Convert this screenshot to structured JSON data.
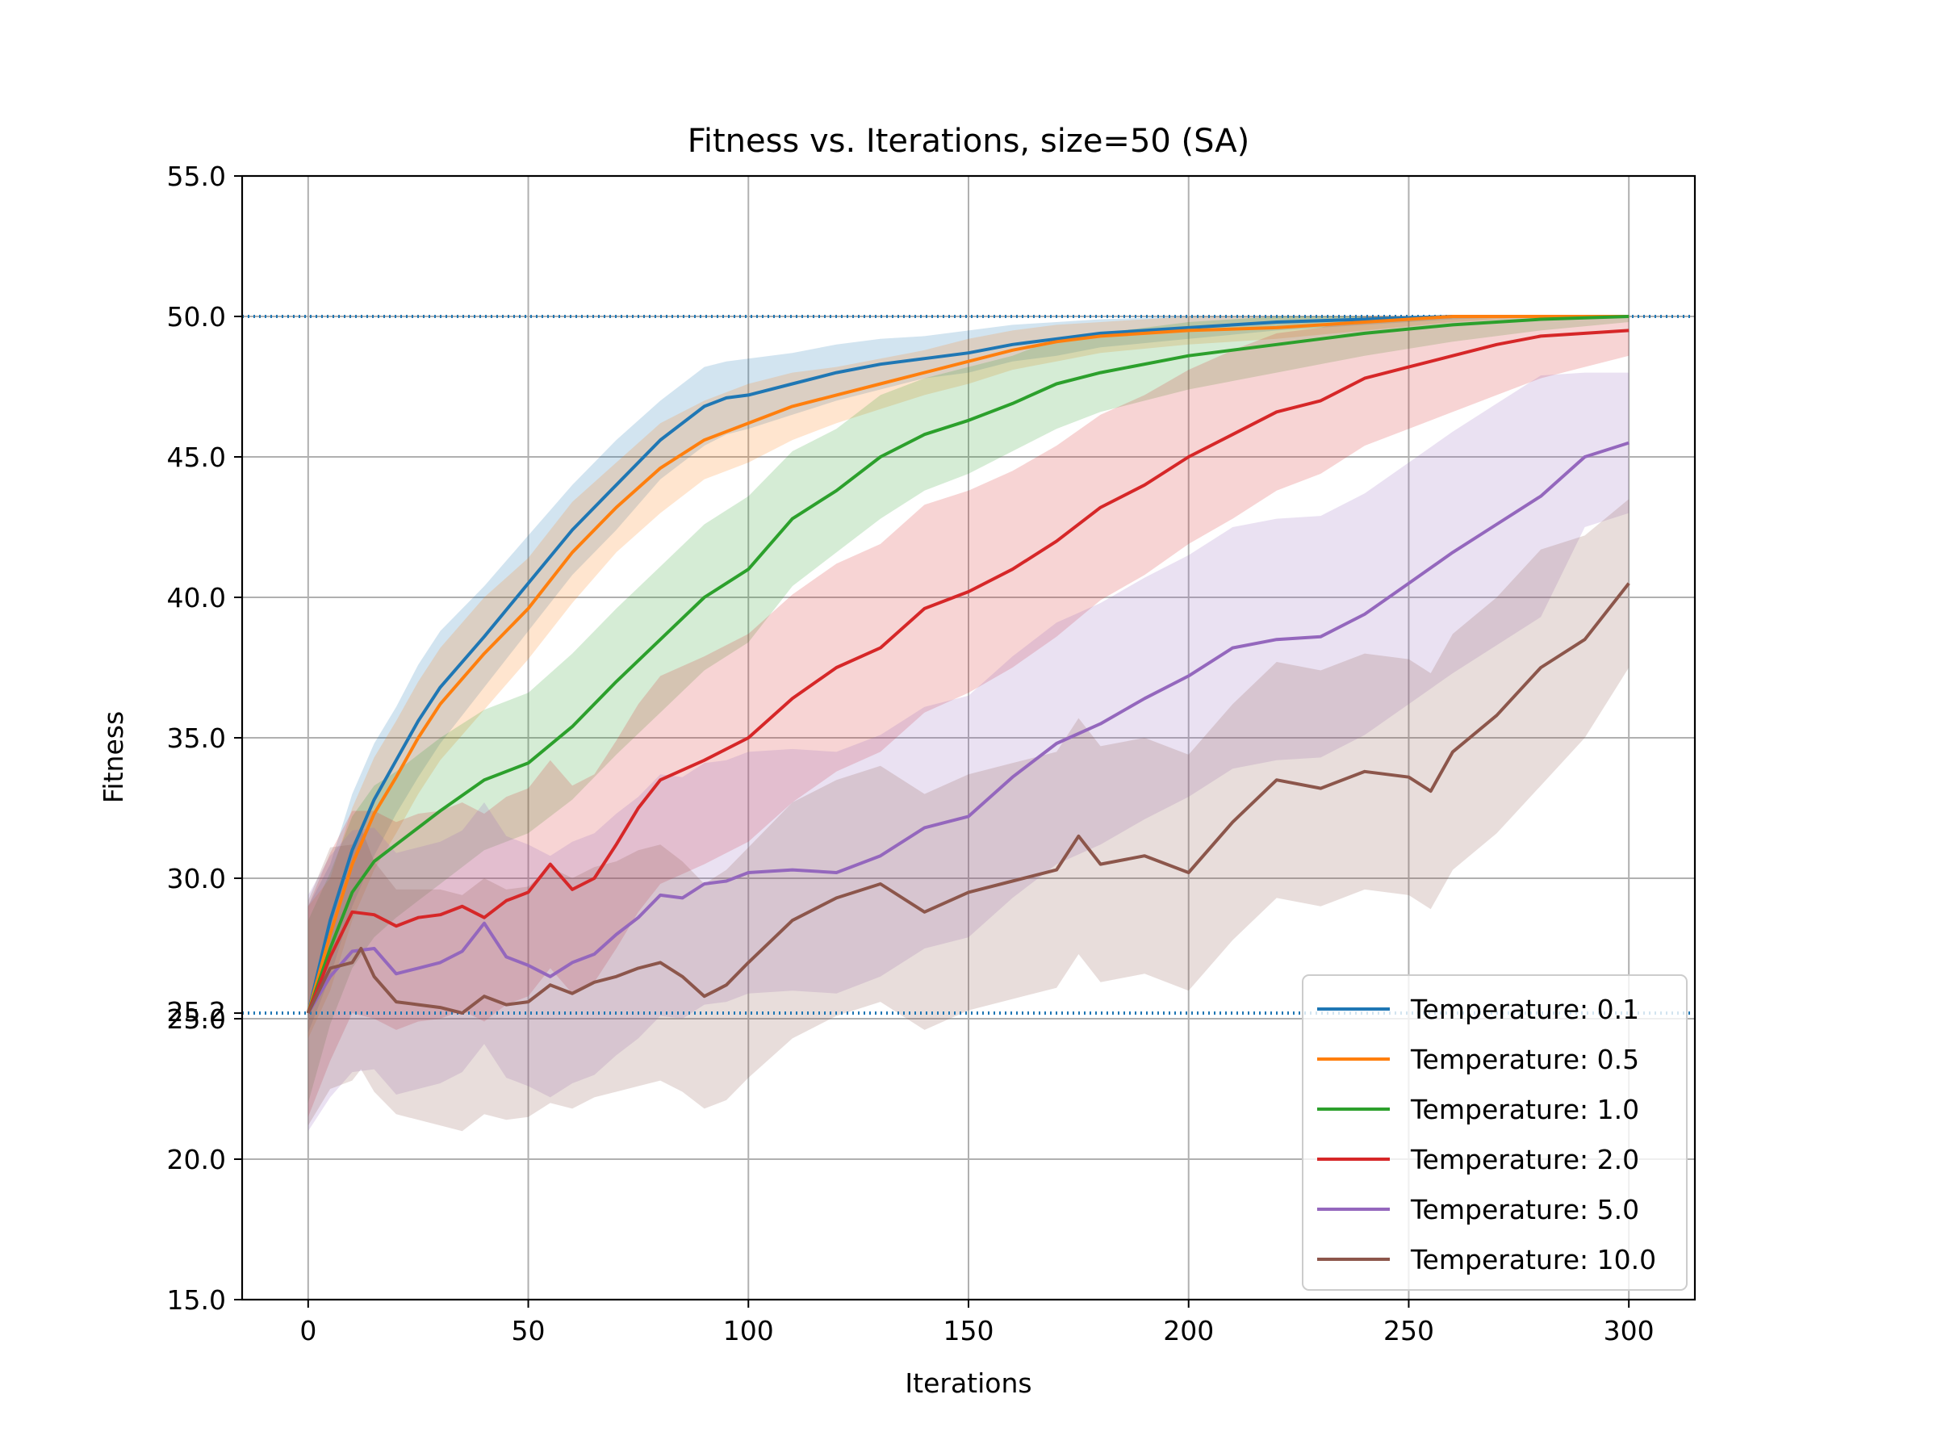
{
  "chart_data": {
    "type": "line",
    "title": "Fitness vs. Iterations, size=50 (SA)",
    "xlabel": "Iterations",
    "ylabel": "Fitness",
    "xlim": [
      -15,
      315
    ],
    "ylim": [
      15,
      55
    ],
    "x_ticks": [
      0,
      50,
      100,
      150,
      200,
      250,
      300
    ],
    "y_ticks": [
      "15.0",
      "20.0",
      "25.0",
      "30.0",
      "35.0",
      "40.0",
      "45.0",
      "50.0",
      "55.0"
    ],
    "extra_y_tick": "25.2",
    "reference_lines": [
      {
        "y": 50.0,
        "style": "dotted",
        "color": "#1f77b4"
      },
      {
        "y": 25.2,
        "style": "dotted",
        "color": "#1f77b4"
      }
    ],
    "grid": true,
    "legend_position": "lower-right",
    "band_opacity": 0.2,
    "series": [
      {
        "name": "Temperature: 0.1",
        "color": "#1f77b4",
        "x": [
          0,
          5,
          10,
          15,
          20,
          25,
          30,
          40,
          50,
          60,
          70,
          80,
          90,
          95,
          100,
          110,
          120,
          130,
          140,
          150,
          160,
          170,
          180,
          200,
          220,
          240,
          260,
          280,
          300
        ],
        "mean": [
          25.2,
          28.5,
          31.0,
          32.8,
          34.2,
          35.6,
          36.8,
          38.6,
          40.5,
          42.4,
          44.0,
          45.6,
          46.8,
          47.1,
          47.2,
          47.6,
          48.0,
          48.3,
          48.5,
          48.7,
          49.0,
          49.2,
          49.4,
          49.6,
          49.8,
          49.9,
          50.0,
          50.0,
          50.0
        ],
        "lower": [
          24.5,
          26.5,
          29.0,
          30.8,
          32.3,
          33.6,
          34.8,
          36.8,
          38.8,
          40.8,
          42.4,
          44.2,
          45.4,
          45.8,
          46.0,
          46.5,
          47.0,
          47.4,
          47.8,
          48.0,
          48.4,
          48.6,
          48.9,
          49.2,
          49.5,
          49.7,
          49.9,
          50.0,
          50.0
        ],
        "upper": [
          29.0,
          30.5,
          33.0,
          34.8,
          36.1,
          37.6,
          38.8,
          40.4,
          42.2,
          44.0,
          45.6,
          47.0,
          48.2,
          48.4,
          48.5,
          48.7,
          49.0,
          49.2,
          49.3,
          49.5,
          49.7,
          49.8,
          49.9,
          50.0,
          50.0,
          50.0,
          50.0,
          50.0,
          50.0
        ]
      },
      {
        "name": "Temperature: 0.5",
        "color": "#ff7f0e",
        "x": [
          0,
          5,
          10,
          15,
          20,
          25,
          30,
          40,
          50,
          60,
          70,
          80,
          90,
          100,
          110,
          120,
          130,
          140,
          150,
          160,
          170,
          180,
          200,
          220,
          240,
          260,
          280,
          300
        ],
        "mean": [
          25.2,
          28.0,
          30.5,
          32.3,
          33.6,
          35.0,
          36.2,
          38.0,
          39.6,
          41.6,
          43.2,
          44.6,
          45.6,
          46.2,
          46.8,
          47.2,
          47.6,
          48.0,
          48.4,
          48.8,
          49.1,
          49.3,
          49.5,
          49.6,
          49.8,
          50.0,
          50.0,
          50.0
        ],
        "lower": [
          24.3,
          26.0,
          28.5,
          30.3,
          31.6,
          33.0,
          34.2,
          36.0,
          37.8,
          39.8,
          41.6,
          43.0,
          44.2,
          44.8,
          45.6,
          46.2,
          46.7,
          47.2,
          47.6,
          48.1,
          48.4,
          48.7,
          49.0,
          49.2,
          49.5,
          49.8,
          50.0,
          50.0
        ],
        "upper": [
          29.0,
          30.0,
          32.5,
          34.3,
          35.6,
          37.0,
          38.2,
          40.0,
          41.4,
          43.4,
          44.8,
          46.2,
          47.0,
          47.6,
          48.0,
          48.2,
          48.5,
          48.8,
          49.2,
          49.5,
          49.7,
          49.8,
          50.0,
          50.0,
          50.0,
          50.0,
          50.0,
          50.0
        ]
      },
      {
        "name": "Temperature: 1.0",
        "color": "#2ca02c",
        "x": [
          0,
          5,
          10,
          15,
          20,
          25,
          30,
          40,
          50,
          60,
          70,
          80,
          90,
          100,
          110,
          120,
          130,
          140,
          150,
          160,
          170,
          180,
          200,
          220,
          240,
          260,
          280,
          300
        ],
        "mean": [
          25.2,
          27.5,
          29.5,
          30.6,
          31.2,
          31.8,
          32.4,
          33.5,
          34.1,
          35.4,
          37.0,
          38.5,
          40.0,
          41.0,
          42.8,
          43.8,
          45.0,
          45.8,
          46.3,
          46.9,
          47.6,
          48.0,
          48.6,
          49.0,
          49.4,
          49.7,
          49.9,
          50.0
        ],
        "lower": [
          22.0,
          24.8,
          26.8,
          27.9,
          28.6,
          29.2,
          29.8,
          31.0,
          31.6,
          32.8,
          34.4,
          35.9,
          37.4,
          38.4,
          40.4,
          41.6,
          42.8,
          43.8,
          44.4,
          45.2,
          46.0,
          46.6,
          47.4,
          48.0,
          48.6,
          49.1,
          49.5,
          49.8
        ],
        "upper": [
          28.5,
          30.2,
          32.2,
          33.3,
          33.8,
          34.4,
          35.0,
          36.0,
          36.6,
          38.0,
          39.6,
          41.1,
          42.6,
          43.6,
          45.2,
          46.0,
          47.2,
          47.8,
          48.2,
          48.6,
          49.2,
          49.4,
          49.8,
          50.0,
          50.0,
          50.0,
          50.0,
          50.0
        ]
      },
      {
        "name": "Temperature: 2.0",
        "color": "#d62728",
        "x": [
          0,
          5,
          10,
          15,
          20,
          25,
          30,
          35,
          40,
          45,
          50,
          55,
          60,
          65,
          70,
          75,
          80,
          90,
          100,
          110,
          120,
          130,
          140,
          150,
          160,
          170,
          180,
          190,
          200,
          210,
          220,
          230,
          240,
          250,
          260,
          270,
          280,
          290,
          300
        ],
        "mean": [
          25.2,
          27.2,
          28.8,
          28.7,
          28.3,
          28.6,
          28.7,
          29.0,
          28.6,
          29.2,
          29.5,
          30.5,
          29.6,
          30.0,
          31.2,
          32.5,
          33.5,
          34.2,
          35.0,
          36.4,
          37.5,
          38.2,
          39.6,
          40.2,
          41.0,
          42.0,
          43.2,
          44.0,
          45.0,
          45.8,
          46.6,
          47.0,
          47.8,
          48.2,
          48.6,
          49.0,
          49.3,
          49.4,
          49.5
        ],
        "lower": [
          21.5,
          23.5,
          25.2,
          25.0,
          24.6,
          24.9,
          25.0,
          25.3,
          24.9,
          25.5,
          25.8,
          26.8,
          25.9,
          26.3,
          27.5,
          28.8,
          29.8,
          30.5,
          31.3,
          32.7,
          33.8,
          34.5,
          35.9,
          36.6,
          37.5,
          38.6,
          39.9,
          40.8,
          41.9,
          42.8,
          43.8,
          44.4,
          45.4,
          46.0,
          46.6,
          47.2,
          47.8,
          48.2,
          48.6
        ],
        "upper": [
          29.0,
          30.9,
          32.4,
          32.4,
          32.0,
          32.3,
          32.4,
          32.7,
          32.3,
          32.9,
          33.2,
          34.2,
          33.3,
          33.7,
          34.9,
          36.2,
          37.2,
          37.9,
          38.7,
          40.1,
          41.2,
          41.9,
          43.3,
          43.8,
          44.5,
          45.4,
          46.5,
          47.2,
          48.1,
          48.8,
          49.4,
          49.6,
          50.0,
          50.0,
          50.0,
          50.0,
          50.0,
          50.0,
          50.0
        ]
      },
      {
        "name": "Temperature: 5.0",
        "color": "#9467bd",
        "x": [
          0,
          5,
          10,
          15,
          20,
          25,
          30,
          35,
          40,
          45,
          50,
          55,
          60,
          65,
          70,
          75,
          80,
          85,
          90,
          95,
          100,
          110,
          120,
          130,
          140,
          150,
          160,
          170,
          180,
          190,
          200,
          210,
          220,
          230,
          240,
          250,
          260,
          270,
          280,
          290,
          300
        ],
        "mean": [
          25.2,
          26.5,
          27.4,
          27.5,
          26.6,
          26.8,
          27.0,
          27.4,
          28.4,
          27.2,
          26.9,
          26.5,
          27.0,
          27.3,
          28.0,
          28.6,
          29.4,
          29.3,
          29.8,
          29.9,
          30.2,
          30.3,
          30.2,
          30.8,
          31.8,
          32.2,
          33.6,
          34.8,
          35.5,
          36.4,
          37.2,
          38.2,
          38.5,
          38.6,
          39.4,
          40.5,
          41.6,
          42.6,
          43.6,
          45.0,
          45.5
        ],
        "lower": [
          21.0,
          22.2,
          23.1,
          23.2,
          22.3,
          22.5,
          22.7,
          23.1,
          24.1,
          22.9,
          22.6,
          22.2,
          22.7,
          23.0,
          23.7,
          24.3,
          25.1,
          25.0,
          25.5,
          25.6,
          25.9,
          26.0,
          25.9,
          26.5,
          27.5,
          27.9,
          29.3,
          30.5,
          31.2,
          32.1,
          32.9,
          33.9,
          34.2,
          34.3,
          35.1,
          36.2,
          37.3,
          38.3,
          39.3,
          42.5,
          43.0
        ],
        "upper": [
          29.4,
          30.8,
          31.7,
          31.8,
          30.9,
          31.1,
          31.3,
          31.7,
          32.7,
          31.5,
          31.2,
          30.8,
          31.3,
          31.6,
          32.3,
          32.9,
          33.7,
          33.6,
          34.1,
          34.2,
          34.5,
          34.6,
          34.5,
          35.1,
          36.1,
          36.5,
          37.9,
          39.1,
          39.8,
          40.7,
          41.5,
          42.5,
          42.8,
          42.9,
          43.7,
          44.8,
          45.9,
          46.9,
          47.9,
          48.0,
          48.0
        ]
      },
      {
        "name": "Temperature: 10.0",
        "color": "#8c564b",
        "x": [
          0,
          5,
          10,
          12,
          15,
          20,
          25,
          30,
          35,
          40,
          45,
          50,
          55,
          60,
          65,
          70,
          75,
          80,
          85,
          90,
          95,
          100,
          110,
          120,
          130,
          140,
          150,
          160,
          170,
          175,
          180,
          190,
          200,
          210,
          220,
          230,
          240,
          250,
          255,
          260,
          270,
          280,
          290,
          300
        ],
        "mean": [
          25.2,
          26.8,
          27.0,
          27.5,
          26.5,
          25.6,
          25.5,
          25.4,
          25.2,
          25.8,
          25.5,
          25.6,
          26.2,
          25.9,
          26.3,
          26.5,
          26.8,
          27.0,
          26.5,
          25.8,
          26.2,
          27.0,
          28.5,
          29.3,
          29.8,
          28.8,
          29.5,
          29.9,
          30.3,
          31.5,
          30.5,
          30.8,
          30.2,
          32.0,
          33.5,
          33.2,
          33.8,
          33.6,
          33.1,
          34.5,
          35.8,
          37.5,
          38.5,
          40.5
        ],
        "lower": [
          21.2,
          22.5,
          22.8,
          23.2,
          22.4,
          21.6,
          21.4,
          21.2,
          21.0,
          21.6,
          21.4,
          21.5,
          22.0,
          21.8,
          22.2,
          22.4,
          22.6,
          22.8,
          22.4,
          21.8,
          22.1,
          22.9,
          24.3,
          25.1,
          25.6,
          24.6,
          25.3,
          25.7,
          26.1,
          27.3,
          26.3,
          26.6,
          26.0,
          27.8,
          29.3,
          29.0,
          29.6,
          29.4,
          28.9,
          30.3,
          31.6,
          33.3,
          35.0,
          37.5
        ],
        "upper": [
          29.2,
          31.1,
          31.2,
          31.8,
          30.6,
          29.6,
          29.6,
          29.6,
          29.4,
          30.0,
          29.6,
          29.7,
          30.4,
          30.0,
          30.4,
          30.6,
          31.0,
          31.2,
          30.6,
          29.8,
          30.3,
          31.1,
          32.7,
          33.5,
          34.0,
          33.0,
          33.7,
          34.1,
          34.5,
          35.7,
          34.7,
          35.0,
          34.4,
          36.2,
          37.7,
          37.4,
          38.0,
          37.8,
          37.3,
          38.7,
          40.0,
          41.7,
          42.2,
          43.5
        ]
      }
    ]
  }
}
